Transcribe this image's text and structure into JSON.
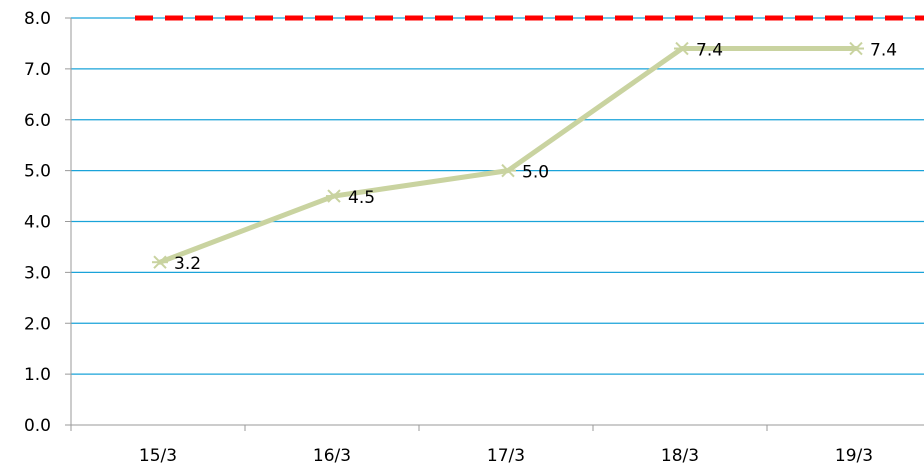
{
  "chart_data": {
    "type": "line",
    "title": "",
    "xlabel": "",
    "ylabel": "",
    "categories": [
      "15/3",
      "16/3",
      "17/3",
      "18/3",
      "19/3"
    ],
    "series": [
      {
        "values": [
          3.2,
          4.5,
          5.0,
          7.4,
          7.4
        ],
        "data_labels": [
          "3.2",
          "4.5",
          "5.0",
          "7.4",
          "7.4"
        ],
        "color": "#c9d3a0",
        "marker": "asterisk"
      }
    ],
    "y_ticks": [
      "0.0",
      "1.0",
      "2.0",
      "3.0",
      "4.0",
      "5.0",
      "6.0",
      "7.0",
      "8.0"
    ],
    "y_tick_values": [
      0,
      1,
      2,
      3,
      4,
      5,
      6,
      7,
      8
    ],
    "ylim": [
      0,
      8
    ],
    "reference_line": {
      "value": 8.0,
      "color": "#ff0000",
      "style": "dashed"
    },
    "grid": true,
    "grid_color": "#1aa3d9",
    "axis_color": "#9a9a9a",
    "legend": "none"
  }
}
